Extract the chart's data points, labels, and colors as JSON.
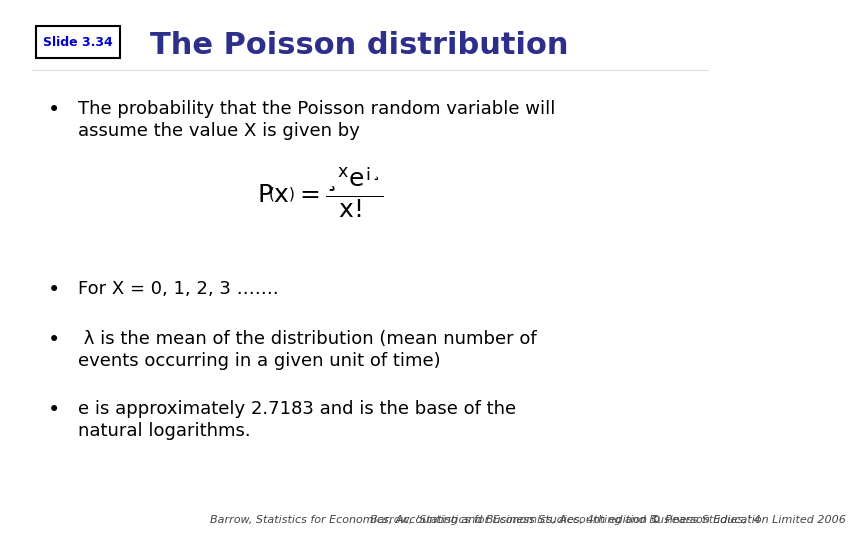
{
  "background_color": "#ffffff",
  "slide_label": "Slide 3.34",
  "slide_label_color": "#0000CC",
  "slide_label_fontsize": 9,
  "title": "The Poisson distribution",
  "title_color": "#2E2E8B",
  "title_fontsize": 22,
  "bullet_color": "#000000",
  "bullet_fontsize": 13,
  "bullet1_line1": "The probability that the Poisson random variable will",
  "bullet1_line2": "assume the value X is given by",
  "formula_fontsize": 18,
  "bullet2": "For X = 0, 1, 2, 3 …….",
  "bullet3_line1": " λ is the mean of the distribution (mean number of",
  "bullet3_line2": "events occurring in a given unit of time)",
  "bullet4_line1": "e is approximately 2.7183 and is the base of the",
  "bullet4_line2": "natural logarithms.",
  "footer": "Barrow, Statistics for Economics, Accounting and Business Studies, 4",
  "footer2": "th",
  "footer3": " edition © Pearson Education Limited 2006",
  "footer_fontsize": 8
}
